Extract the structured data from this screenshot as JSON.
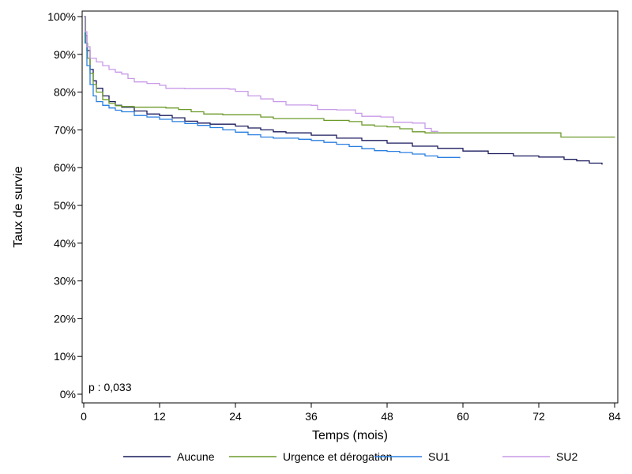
{
  "chart_data": {
    "type": "line",
    "title": "",
    "xlabel": "Temps (mois)",
    "ylabel": "Taux de survie",
    "xlim": [
      0,
      84
    ],
    "ylim": [
      0,
      100
    ],
    "x_ticks": [
      0,
      12,
      24,
      36,
      48,
      60,
      72,
      84
    ],
    "x_tick_labels": [
      "0",
      "12",
      "24",
      "36",
      "48",
      "60",
      "72",
      "84"
    ],
    "y_ticks": [
      0,
      10,
      20,
      30,
      40,
      50,
      60,
      70,
      80,
      90,
      100
    ],
    "y_tick_labels": [
      "0%",
      "10%",
      "20%",
      "30%",
      "40%",
      "50%",
      "60%",
      "70%",
      "80%",
      "90%",
      "100%"
    ],
    "grid": false,
    "legend_position": "bottom",
    "annotation": "p : 0,033",
    "series": [
      {
        "name": "Aucune",
        "color": "#1a1a5e",
        "points": [
          [
            0,
            100
          ],
          [
            0.2,
            95
          ],
          [
            0.5,
            91
          ],
          [
            1,
            86
          ],
          [
            1.5,
            83
          ],
          [
            2,
            81
          ],
          [
            3,
            79
          ],
          [
            4,
            77.5
          ],
          [
            5,
            76.5
          ],
          [
            6,
            76
          ],
          [
            8,
            75
          ],
          [
            10,
            74.2
          ],
          [
            12,
            73.8
          ],
          [
            14,
            73.2
          ],
          [
            16,
            72.3
          ],
          [
            18,
            71.8
          ],
          [
            20,
            71.5
          ],
          [
            24,
            71
          ],
          [
            26,
            70.5
          ],
          [
            28,
            70
          ],
          [
            30,
            69.5
          ],
          [
            32,
            69.2
          ],
          [
            36,
            68.6
          ],
          [
            40,
            67.8
          ],
          [
            44,
            67.2
          ],
          [
            48,
            66.5
          ],
          [
            52,
            65.7
          ],
          [
            56,
            65.1
          ],
          [
            60,
            64.4
          ],
          [
            64,
            63.7
          ],
          [
            68,
            63.1
          ],
          [
            72,
            62.8
          ],
          [
            76,
            62.2
          ],
          [
            78,
            61.8
          ],
          [
            80,
            61.2
          ],
          [
            82,
            60.8
          ]
        ]
      },
      {
        "name": "Urgence et dérogation",
        "color": "#6b9a2a",
        "points": [
          [
            0,
            100
          ],
          [
            0.3,
            93
          ],
          [
            0.6,
            89
          ],
          [
            1,
            85
          ],
          [
            1.5,
            82
          ],
          [
            2,
            80
          ],
          [
            3,
            78
          ],
          [
            4,
            77
          ],
          [
            5,
            76.4
          ],
          [
            6,
            76.2
          ],
          [
            8,
            76
          ],
          [
            13,
            75.8
          ],
          [
            15,
            75.4
          ],
          [
            17,
            74.8
          ],
          [
            19,
            74.2
          ],
          [
            22,
            74
          ],
          [
            26,
            74
          ],
          [
            28,
            73.4
          ],
          [
            30,
            73
          ],
          [
            36,
            73
          ],
          [
            38,
            72.5
          ],
          [
            42,
            72.2
          ],
          [
            44,
            71.3
          ],
          [
            46,
            71
          ],
          [
            48,
            70.8
          ],
          [
            50,
            70.3
          ],
          [
            52,
            69.5
          ],
          [
            54,
            69.2
          ],
          [
            60,
            69.2
          ],
          [
            75,
            69.2
          ],
          [
            75.5,
            68.1
          ],
          [
            84,
            68
          ]
        ]
      },
      {
        "name": "SU1",
        "color": "#2a7fe0",
        "points": [
          [
            0,
            100
          ],
          [
            0.2,
            93
          ],
          [
            0.5,
            87
          ],
          [
            1,
            82
          ],
          [
            1.5,
            79
          ],
          [
            2,
            77.5
          ],
          [
            3,
            76.5
          ],
          [
            4,
            75.8
          ],
          [
            5,
            75.2
          ],
          [
            6,
            74.8
          ],
          [
            8,
            73.8
          ],
          [
            10,
            73.4
          ],
          [
            12,
            72.8
          ],
          [
            14,
            72.2
          ],
          [
            16,
            71.7
          ],
          [
            18,
            71.2
          ],
          [
            20,
            70.6
          ],
          [
            22,
            70
          ],
          [
            24,
            69.4
          ],
          [
            26,
            68.7
          ],
          [
            28,
            68.1
          ],
          [
            30,
            67.8
          ],
          [
            34,
            67.5
          ],
          [
            36,
            67.2
          ],
          [
            38,
            66.7
          ],
          [
            40,
            66.2
          ],
          [
            42,
            65.6
          ],
          [
            44,
            65
          ],
          [
            46,
            64.5
          ],
          [
            48,
            64.3
          ],
          [
            50,
            64
          ],
          [
            52,
            63.6
          ],
          [
            54,
            63.1
          ],
          [
            56,
            62.7
          ],
          [
            59.5,
            62.5
          ]
        ]
      },
      {
        "name": "SU2",
        "color": "#c89ae8",
        "points": [
          [
            0,
            100
          ],
          [
            0.2,
            96
          ],
          [
            0.5,
            92
          ],
          [
            1,
            89
          ],
          [
            2,
            88
          ],
          [
            3,
            87
          ],
          [
            4,
            86
          ],
          [
            5,
            85.3
          ],
          [
            6,
            84.8
          ],
          [
            7,
            83.6
          ],
          [
            8,
            82.7
          ],
          [
            10,
            82.3
          ],
          [
            12,
            81.8
          ],
          [
            13,
            81
          ],
          [
            16,
            80.9
          ],
          [
            20,
            80.9
          ],
          [
            23,
            80.8
          ],
          [
            24,
            80.2
          ],
          [
            26,
            79
          ],
          [
            28,
            78.2
          ],
          [
            30,
            77.5
          ],
          [
            32,
            76.6
          ],
          [
            36,
            76.5
          ],
          [
            37,
            75.4
          ],
          [
            40,
            75.3
          ],
          [
            43,
            74.4
          ],
          [
            44,
            73.6
          ],
          [
            47,
            73.4
          ],
          [
            49,
            72
          ],
          [
            52,
            71.8
          ],
          [
            54,
            70.4
          ],
          [
            55,
            69.6
          ],
          [
            56,
            69.2
          ]
        ]
      }
    ]
  }
}
